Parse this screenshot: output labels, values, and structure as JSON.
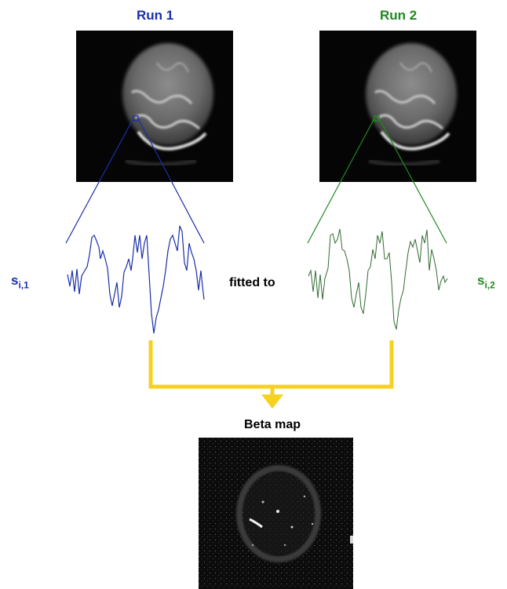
{
  "run1": {
    "title": "Run 1",
    "signal_base": "s",
    "signal_sub": "i,1",
    "color": "#1a2fa8"
  },
  "run2": {
    "title": "Run 2",
    "signal_base": "s",
    "signal_sub": "i,2",
    "color": "#1f8a1f"
  },
  "relation_label": "fitted to",
  "output": {
    "title": "Beta map",
    "arrow_color": "#f5d21f"
  }
}
